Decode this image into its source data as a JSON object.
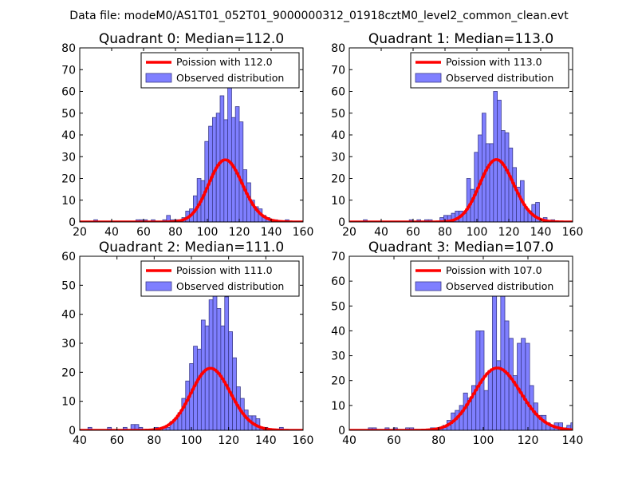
{
  "figure": {
    "suptitle": "Data file: modeM0/AS1T01_052T01_9000000312_01918cztM0_level2_common_clean.evt"
  },
  "colors": {
    "bar_fill": "#7f7fff",
    "bar_stroke": "#3b3b8c",
    "curve": "#ff0000",
    "axes": "#000000",
    "legend_border": "#000000"
  },
  "chart_data": [
    {
      "type": "bar+line",
      "title": "Quadrant 0: Median=112.0",
      "median": 112.0,
      "xlim": [
        20,
        160
      ],
      "ylim": [
        0,
        80
      ],
      "xticks": [
        20,
        40,
        60,
        80,
        100,
        120,
        140,
        160
      ],
      "yticks": [
        0,
        10,
        20,
        30,
        40,
        50,
        60,
        70,
        80
      ],
      "legend": {
        "position": "top-right",
        "curve_label": "Poission with 112.0",
        "bars_label": "Observed distribution"
      },
      "bin_width": 2.4,
      "bars": [
        [
          28.8,
          1
        ],
        [
          40.8,
          0
        ],
        [
          55.2,
          1
        ],
        [
          57.6,
          1
        ],
        [
          60,
          1
        ],
        [
          62.4,
          0
        ],
        [
          64.8,
          1
        ],
        [
          72,
          1
        ],
        [
          74.4,
          3
        ],
        [
          76.8,
          1
        ],
        [
          79.2,
          1
        ],
        [
          81.6,
          1
        ],
        [
          84,
          2
        ],
        [
          86.4,
          5
        ],
        [
          88.8,
          6
        ],
        [
          91.2,
          12
        ],
        [
          93.6,
          20
        ],
        [
          96,
          19
        ],
        [
          98.4,
          37
        ],
        [
          100.8,
          44
        ],
        [
          103.2,
          48
        ],
        [
          105.6,
          50
        ],
        [
          108,
          58
        ],
        [
          110.4,
          47
        ],
        [
          112.8,
          68
        ],
        [
          115.2,
          48
        ],
        [
          117.6,
          53
        ],
        [
          120,
          46
        ],
        [
          122.4,
          24
        ],
        [
          124.8,
          18
        ],
        [
          127.2,
          10
        ],
        [
          129.6,
          7
        ],
        [
          132,
          6
        ],
        [
          134.4,
          3
        ],
        [
          136.8,
          2
        ],
        [
          141.6,
          1
        ],
        [
          148.8,
          1
        ]
      ],
      "curve": {
        "lambda": 112.0,
        "scale": 758
      }
    },
    {
      "type": "bar+line",
      "title": "Quadrant 1: Median=113.0",
      "median": 113.0,
      "xlim": [
        20,
        160
      ],
      "ylim": [
        0,
        80
      ],
      "xticks": [
        20,
        40,
        60,
        80,
        100,
        120,
        140,
        160
      ],
      "yticks": [
        0,
        10,
        20,
        30,
        40,
        50,
        60,
        70,
        80
      ],
      "legend": {
        "position": "top-right",
        "curve_label": "Poission with 113.0",
        "bars_label": "Observed distribution"
      },
      "bin_width": 2.4,
      "bars": [
        [
          28.8,
          1
        ],
        [
          57.6,
          1
        ],
        [
          62.4,
          1
        ],
        [
          67.2,
          1
        ],
        [
          69.6,
          1
        ],
        [
          76.8,
          2
        ],
        [
          79.2,
          3
        ],
        [
          81.6,
          3
        ],
        [
          84,
          4
        ],
        [
          86.4,
          5
        ],
        [
          88.8,
          5
        ],
        [
          91.2,
          4
        ],
        [
          93.6,
          20
        ],
        [
          96,
          15
        ],
        [
          98.4,
          32
        ],
        [
          100.8,
          40
        ],
        [
          103.2,
          50
        ],
        [
          105.6,
          36
        ],
        [
          108,
          36
        ],
        [
          110.4,
          60
        ],
        [
          112.8,
          56
        ],
        [
          115.2,
          42
        ],
        [
          117.6,
          41
        ],
        [
          120,
          34
        ],
        [
          122.4,
          25
        ],
        [
          124.8,
          16
        ],
        [
          127.2,
          19
        ],
        [
          129.6,
          6
        ],
        [
          132,
          5
        ],
        [
          134.4,
          8
        ],
        [
          136.8,
          9
        ],
        [
          141.6,
          2
        ],
        [
          146.4,
          1
        ]
      ],
      "curve": {
        "lambda": 113.0,
        "scale": 764
      }
    },
    {
      "type": "bar+line",
      "title": "Quadrant 2: Median=111.0",
      "median": 111.0,
      "xlim": [
        40,
        160
      ],
      "ylim": [
        0,
        60
      ],
      "xticks": [
        40,
        60,
        80,
        100,
        120,
        140,
        160
      ],
      "yticks": [
        0,
        10,
        20,
        30,
        40,
        50,
        60
      ],
      "legend": {
        "position": "top-right",
        "curve_label": "Poission with 111.0",
        "bars_label": "Observed distribution"
      },
      "bin_width": 2.1,
      "bars": [
        [
          44.4,
          1
        ],
        [
          54.9,
          1
        ],
        [
          63.3,
          1
        ],
        [
          67.5,
          2
        ],
        [
          69.6,
          2
        ],
        [
          71.7,
          1
        ],
        [
          80.1,
          1
        ],
        [
          84.3,
          1
        ],
        [
          86.4,
          1
        ],
        [
          88.5,
          3
        ],
        [
          90.6,
          4
        ],
        [
          92.7,
          6
        ],
        [
          94.8,
          11
        ],
        [
          96.9,
          17
        ],
        [
          99,
          23
        ],
        [
          101.1,
          29
        ],
        [
          103.2,
          28
        ],
        [
          105.3,
          38
        ],
        [
          107.4,
          36
        ],
        [
          109.5,
          45
        ],
        [
          111.6,
          50
        ],
        [
          113.7,
          42
        ],
        [
          115.8,
          36
        ],
        [
          117.9,
          46
        ],
        [
          120,
          34
        ],
        [
          122.1,
          25
        ],
        [
          124.2,
          15
        ],
        [
          126.3,
          11
        ],
        [
          128.4,
          7
        ],
        [
          130.5,
          5
        ],
        [
          132.6,
          5
        ],
        [
          134.7,
          4
        ],
        [
          136.8,
          1
        ],
        [
          138.9,
          1
        ],
        [
          147.3,
          1
        ]
      ],
      "curve": {
        "lambda": 111.0,
        "scale": 565
      }
    },
    {
      "type": "bar+line",
      "title": "Quadrant 3: Median=107.0",
      "median": 107.0,
      "xlim": [
        40,
        140
      ],
      "ylim": [
        0,
        70
      ],
      "xticks": [
        40,
        60,
        80,
        100,
        120,
        140
      ],
      "yticks": [
        0,
        10,
        20,
        30,
        40,
        50,
        60,
        70
      ],
      "legend": {
        "position": "top-right",
        "curve_label": "Poission with 107.0",
        "bars_label": "Observed distribution"
      },
      "bin_width": 1.85,
      "bars": [
        [
          48.5,
          1
        ],
        [
          50.3,
          1
        ],
        [
          56,
          1
        ],
        [
          59.7,
          1
        ],
        [
          65.2,
          1
        ],
        [
          67,
          1
        ],
        [
          76.3,
          1
        ],
        [
          78.2,
          1
        ],
        [
          80,
          1
        ],
        [
          81.9,
          2
        ],
        [
          83.7,
          4
        ],
        [
          85.6,
          7
        ],
        [
          87.4,
          8
        ],
        [
          89.3,
          10
        ],
        [
          91.1,
          15
        ],
        [
          93,
          13
        ],
        [
          94.8,
          18
        ],
        [
          96.7,
          40
        ],
        [
          98.5,
          40
        ],
        [
          100.4,
          16
        ],
        [
          102.2,
          24
        ],
        [
          104.1,
          58
        ],
        [
          105.9,
          28
        ],
        [
          107.8,
          66
        ],
        [
          109.6,
          44
        ],
        [
          111.5,
          37
        ],
        [
          113.3,
          22
        ],
        [
          115.2,
          35
        ],
        [
          117,
          37
        ],
        [
          118.9,
          35
        ],
        [
          120.7,
          18
        ],
        [
          122.6,
          11
        ],
        [
          124.4,
          6
        ],
        [
          126.3,
          6
        ],
        [
          128.1,
          3
        ],
        [
          130,
          2
        ],
        [
          131.8,
          3
        ],
        [
          133.7,
          3
        ],
        [
          135.5,
          1
        ],
        [
          137.4,
          2
        ],
        [
          139.2,
          3
        ]
      ],
      "curve": {
        "lambda": 107.0,
        "scale": 650
      }
    }
  ]
}
